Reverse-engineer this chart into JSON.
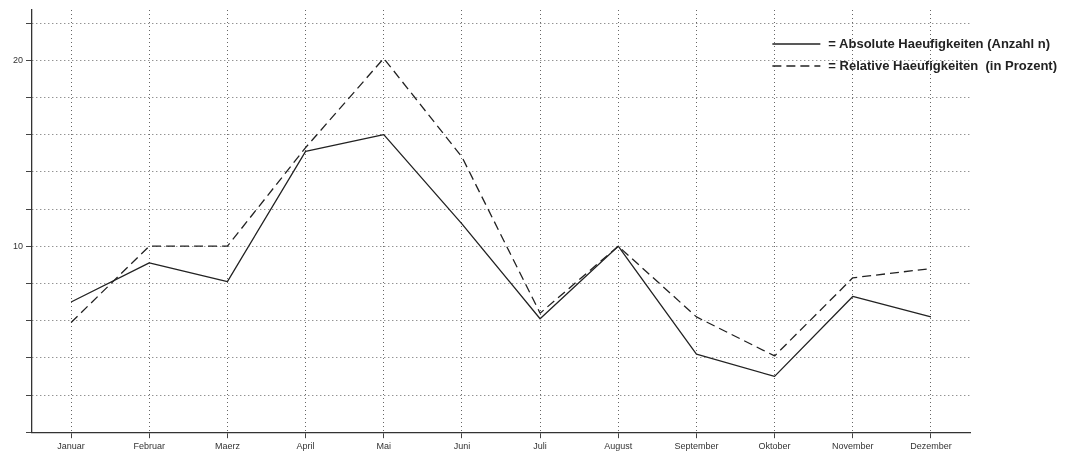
{
  "chart_data": {
    "type": "line",
    "categories": [
      "Januar",
      "Februar",
      "Maerz",
      "April",
      "Mai",
      "Juni",
      "Juli",
      "August",
      "September",
      "Oktober",
      "November",
      "Dezember"
    ],
    "series": [
      {
        "name": "= Absolute Haeufigkeiten (Anzahl n)",
        "color": "#222222",
        "line_style": "solid",
        "values": [
          7.0,
          9.1,
          8.1,
          15.1,
          16.0,
          11.2,
          6.1,
          10.0,
          4.2,
          3.0,
          7.3,
          6.2
        ]
      },
      {
        "name": "= Relative Haeufigkeiten  (in Prozent)",
        "color": "#222222",
        "line_style": "dashed",
        "values": [
          5.9,
          10.0,
          10.0,
          15.3,
          20.1,
          14.8,
          6.4,
          10.0,
          6.2,
          4.1,
          8.3,
          8.8
        ]
      }
    ],
    "ylim": [
      0,
      22.7
    ],
    "yticks": [
      {
        "value": 0,
        "label": null
      },
      {
        "value": 2,
        "label": null
      },
      {
        "value": 4,
        "label": null
      },
      {
        "value": 6,
        "label": null
      },
      {
        "value": 8,
        "label": null
      },
      10,
      {
        "value": 12,
        "label": null
      },
      {
        "value": 14,
        "label": null
      },
      {
        "value": 16,
        "label": null
      },
      {
        "value": 18,
        "label": null
      },
      20,
      {
        "value": 22,
        "label": null
      }
    ],
    "grid": true,
    "legend": "top right",
    "marker": "none"
  }
}
